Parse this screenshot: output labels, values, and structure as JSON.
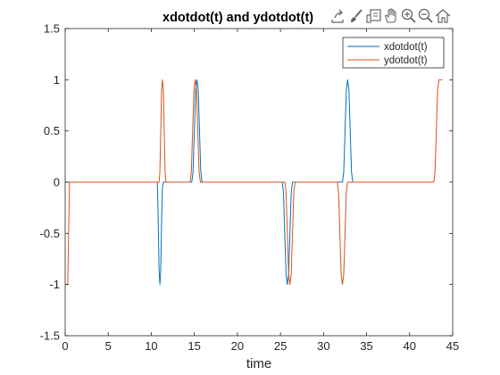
{
  "chart_data": {
    "type": "line",
    "title": "xdotdot(t) and ydotdot(t)",
    "xlabel": "time",
    "ylabel": "",
    "xlim": [
      0,
      45
    ],
    "ylim": [
      -1.5,
      1.5
    ],
    "xticks": [
      0,
      5,
      10,
      15,
      20,
      25,
      30,
      35,
      40,
      45
    ],
    "yticks": [
      -1.5,
      -1,
      -0.5,
      0,
      0.5,
      1,
      1.5
    ],
    "xtick_labels": [
      "0",
      "5",
      "10",
      "15",
      "20",
      "25",
      "30",
      "35",
      "40",
      "45"
    ],
    "ytick_labels": [
      "-1.5",
      "-1",
      "-0.5",
      "0",
      "0.5",
      "1",
      "1.5"
    ],
    "grid": false,
    "legend_position": "top-right",
    "series": [
      {
        "name": "xdotdot(t)",
        "color": "#0072BD",
        "x": [
          0.0,
          10.7,
          10.8,
          10.9,
          11.0,
          11.1,
          11.2,
          11.3,
          11.4,
          11.5,
          14.7,
          14.85,
          15.0,
          15.15,
          15.3,
          15.45,
          15.6,
          15.75,
          15.9,
          16.05,
          25.2,
          25.35,
          25.5,
          25.65,
          25.8,
          25.95,
          26.1,
          26.25,
          26.4,
          26.55,
          32.2,
          32.35,
          32.5,
          32.65,
          32.8,
          32.95,
          33.1,
          33.25,
          33.4,
          33.55
        ],
        "y": [
          0,
          0,
          -0.35,
          -0.85,
          -1.0,
          -0.85,
          -0.35,
          -0.05,
          0,
          0,
          0,
          0.1,
          0.5,
          0.9,
          1.0,
          0.9,
          0.5,
          0.1,
          0,
          0,
          0,
          -0.1,
          -0.5,
          -0.9,
          -1.0,
          -0.9,
          -0.5,
          -0.1,
          0,
          0,
          0,
          0.1,
          0.5,
          0.9,
          1.0,
          0.9,
          0.5,
          0.1,
          0,
          0
        ]
      },
      {
        "name": "ydotdot(t)",
        "color": "#D95319",
        "x": [
          0.0,
          0.3,
          0.5,
          10.9,
          11.0,
          11.1,
          11.2,
          11.3,
          11.4,
          11.5,
          11.6,
          11.7,
          14.5,
          14.65,
          14.8,
          14.95,
          15.1,
          15.25,
          15.4,
          15.55,
          15.7,
          25.5,
          25.65,
          25.8,
          25.95,
          26.1,
          26.25,
          26.4,
          26.55,
          26.7,
          31.6,
          31.75,
          31.9,
          32.05,
          32.2,
          32.35,
          32.5,
          32.65,
          32.8,
          42.8,
          42.95,
          43.1,
          43.25,
          43.4,
          43.6,
          43.8
        ],
        "y": [
          -1.0,
          -1.0,
          0,
          0,
          0.1,
          0.5,
          0.9,
          1.0,
          0.9,
          0.5,
          0.1,
          0,
          0,
          0.1,
          0.5,
          0.9,
          1.0,
          0.9,
          0.5,
          0.1,
          0,
          0,
          -0.1,
          -0.5,
          -0.9,
          -1.0,
          -0.9,
          -0.5,
          -0.1,
          0,
          0,
          -0.1,
          -0.5,
          -0.9,
          -1.0,
          -0.9,
          -0.5,
          -0.1,
          0,
          0,
          0.1,
          0.5,
          0.9,
          1.0,
          1.0,
          1.0
        ]
      }
    ]
  },
  "toolbar": {
    "icons": [
      "export-icon",
      "brush-icon",
      "datatip-icon",
      "pan-icon",
      "zoom-in-icon",
      "zoom-out-icon",
      "home-icon"
    ]
  }
}
